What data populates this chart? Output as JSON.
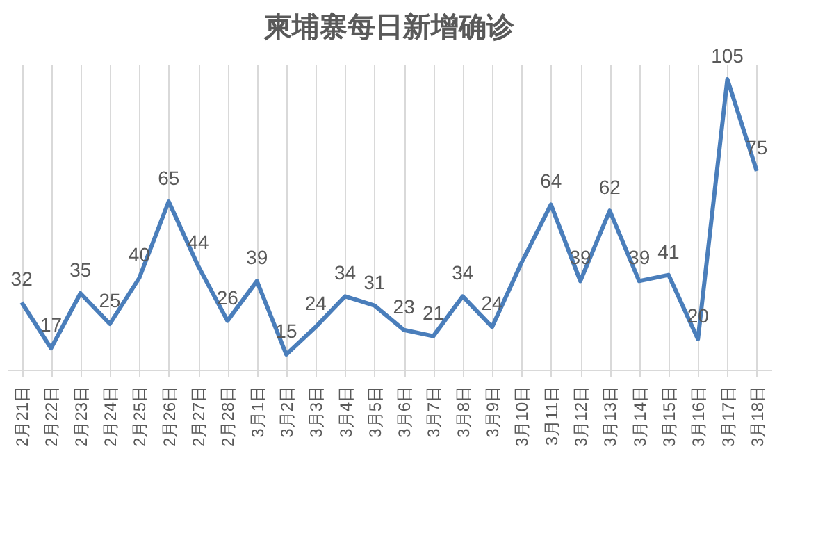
{
  "chart_data": {
    "type": "line",
    "title": "柬埔寨每日新增确诊",
    "categories": [
      "2月21日",
      "2月22日",
      "2月23日",
      "2月24日",
      "2月25日",
      "2月26日",
      "2月27日",
      "2月28日",
      "3月1日",
      "3月2日",
      "3月3日",
      "3月4日",
      "3月5日",
      "3月6日",
      "3月7日",
      "3月8日",
      "3月9日",
      "3月10日",
      "3月11日",
      "3月12日",
      "3月13日",
      "3月14日",
      "3月15日",
      "3月16日",
      "3月17日",
      "3月18日"
    ],
    "series": [
      {
        "color": "#4a7ebb",
        "values": [
          32,
          17,
          35,
          25,
          40,
          65,
          44,
          26,
          39,
          15,
          24,
          34,
          31,
          23,
          21,
          34,
          24,
          45,
          64,
          39,
          62,
          39,
          41,
          20,
          105,
          75
        ],
        "value_labels": [
          "32",
          "17",
          "35",
          "25",
          "40",
          "65",
          "44",
          "26",
          "39",
          "15",
          "24",
          "34",
          "31",
          "23",
          "21",
          "34",
          "24",
          null,
          "64",
          "39",
          "62",
          "39",
          "41",
          "20",
          "105",
          "75"
        ]
      }
    ],
    "grid": "x",
    "tick_labels": "x",
    "marker": "none"
  }
}
